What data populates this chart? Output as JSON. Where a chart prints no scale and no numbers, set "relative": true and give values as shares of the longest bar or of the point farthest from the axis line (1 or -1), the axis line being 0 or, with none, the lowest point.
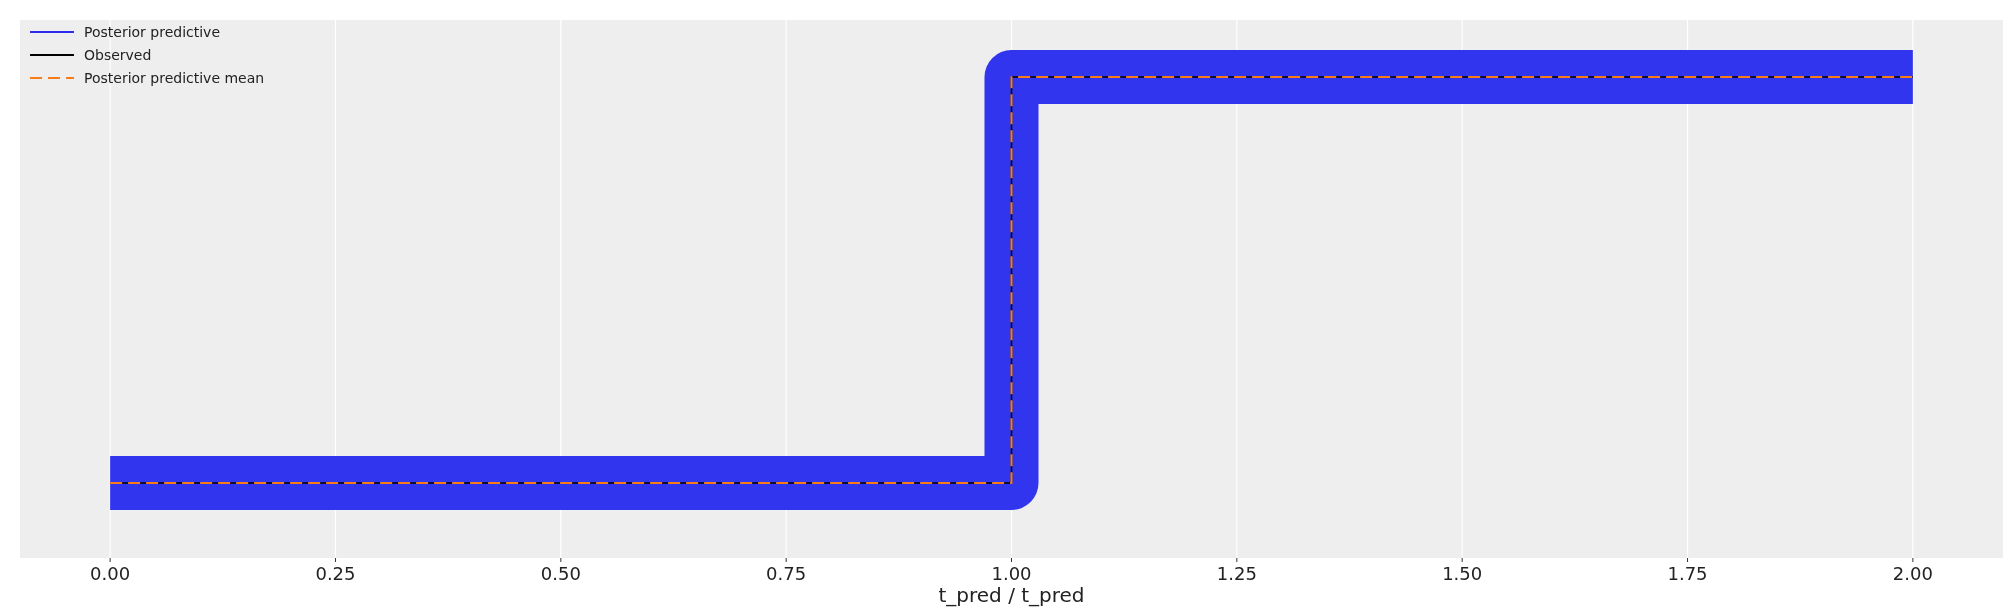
{
  "chart_data": {
    "type": "step",
    "xlabel": "t_pred / t_pred",
    "relative": true,
    "x": [
      0,
      1,
      2
    ],
    "xlim": [
      -0.1,
      2.1
    ],
    "xticks": [
      {
        "value": 0,
        "label": "0.00"
      },
      {
        "value": 0.25,
        "label": "0.25"
      },
      {
        "value": 0.5,
        "label": "0.50"
      },
      {
        "value": 0.75,
        "label": "0.75"
      },
      {
        "value": 1,
        "label": "1.00"
      },
      {
        "value": 1.25,
        "label": "1.25"
      },
      {
        "value": 1.5,
        "label": "1.50"
      },
      {
        "value": 1.75,
        "label": "1.75"
      },
      {
        "value": 2,
        "label": "2.00"
      }
    ],
    "grid": "x",
    "legend": "top left",
    "series": [
      {
        "name": "Posterior predictive",
        "color": "#2a2eec",
        "values": [
          0,
          1,
          1
        ]
      },
      {
        "name": "Observed",
        "color": "#000000",
        "values": [
          0,
          1,
          1
        ]
      },
      {
        "name": "Posterior predictive mean",
        "color": "#fa7c17",
        "values": [
          0,
          1,
          1
        ],
        "line_style": "dashed"
      }
    ]
  }
}
